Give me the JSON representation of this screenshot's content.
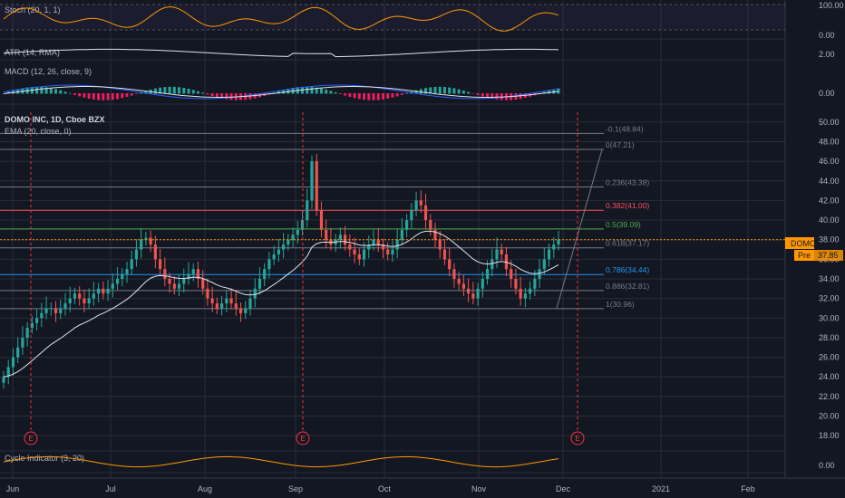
{
  "colors": {
    "background": "#131722",
    "grid": "#2a2e39",
    "up": "#26a69a",
    "down": "#ef5350",
    "text": "#b2b5be",
    "ema": "#e0e3eb",
    "stoch": "#ff9800",
    "atr": "#e0e3eb",
    "macd_line": "#2962ff",
    "signal_line": "#e0e3eb",
    "earnings": "#f23645",
    "price_line": "#ff9800",
    "pre_label": "#ff9800",
    "fib_level": "#787b86",
    "fib_05": "#4caf50",
    "fib_0786": "#2196f3",
    "fib_0382": "#f7525f"
  },
  "panes": {
    "stoch": {
      "label": "Stoch (20, 1, 1)",
      "axis": [
        "100.00",
        "0.00"
      ]
    },
    "atr": {
      "label": "ATR (14, RMA)",
      "axis": [
        "2.00"
      ]
    },
    "macd": {
      "label": "MACD (12, 26, close, 9)",
      "axis": [
        "0.00"
      ]
    },
    "main": {
      "title": "DOMO INC, 1D, Cboe BZX",
      "ema_label": "EMA (20, close, 0)",
      "symbol_tag": "DOMO",
      "pre_tag": "Pre",
      "pre_value": "37.85"
    },
    "cycle": {
      "label": "Cycle Indicator (3, 20)",
      "axis": [
        "0.00"
      ]
    }
  },
  "chart_data": {
    "type": "candlestick",
    "title": "DOMO INC, 1D, Cboe BZX",
    "ylim": [
      17,
      51
    ],
    "y_ticks": [
      "18.00",
      "20.00",
      "22.00",
      "24.00",
      "26.00",
      "28.00",
      "30.00",
      "32.00",
      "34.00",
      "36.00",
      "38.00",
      "40.00",
      "42.00",
      "44.00",
      "46.00",
      "48.00",
      "50.00"
    ],
    "x_ticks": [
      "Jun",
      "Jul",
      "Aug",
      "Sep",
      "Oct",
      "Nov",
      "Dec",
      "2021",
      "Feb"
    ],
    "last_price": 38.0,
    "earnings_markers": [
      "E",
      "E",
      "E"
    ],
    "fib_levels": [
      {
        "label": "-0.1(48.84)",
        "value": 48.84
      },
      {
        "label": "0(47.21)",
        "value": 47.21
      },
      {
        "label": "0.236(43.38)",
        "value": 43.38
      },
      {
        "label": "0.382(41.00)",
        "value": 41.0
      },
      {
        "label": "0.5(39.09)",
        "value": 39.09
      },
      {
        "label": "0.618(37.17)",
        "value": 37.17
      },
      {
        "label": "0.786(34.44)",
        "value": 34.44
      },
      {
        "label": "0.886(32.81)",
        "value": 32.81
      },
      {
        "label": "1(30.96)",
        "value": 30.96
      }
    ],
    "close_series": [
      24,
      25,
      26,
      27,
      28,
      29,
      29.5,
      30,
      30.5,
      31,
      31,
      30.5,
      31,
      31.5,
      32,
      32.5,
      32,
      31.5,
      32,
      32.5,
      33,
      32.5,
      33,
      33.5,
      34,
      34.5,
      35,
      36,
      37,
      38,
      38.2,
      37.5,
      36,
      35,
      34,
      33.5,
      33,
      33.5,
      34,
      34.5,
      35,
      34,
      33,
      32,
      31.5,
      31,
      31.5,
      32,
      31.5,
      31,
      30.5,
      31,
      32,
      33,
      34,
      35,
      36,
      36.5,
      37,
      37.5,
      38,
      38.5,
      39,
      40,
      42,
      46,
      41,
      39,
      38,
      37.5,
      38,
      38.5,
      37.5,
      37,
      36.5,
      36,
      37,
      37.5,
      38,
      37.5,
      37,
      36.5,
      37,
      38,
      39,
      40,
      41,
      42,
      41.5,
      40,
      39,
      38,
      37,
      36,
      35,
      34,
      33.5,
      33,
      32.5,
      32,
      33,
      34,
      35,
      36,
      37,
      36.5,
      35,
      34,
      33,
      32,
      32.5,
      33,
      34,
      35,
      36,
      37,
      37.5,
      38
    ]
  }
}
